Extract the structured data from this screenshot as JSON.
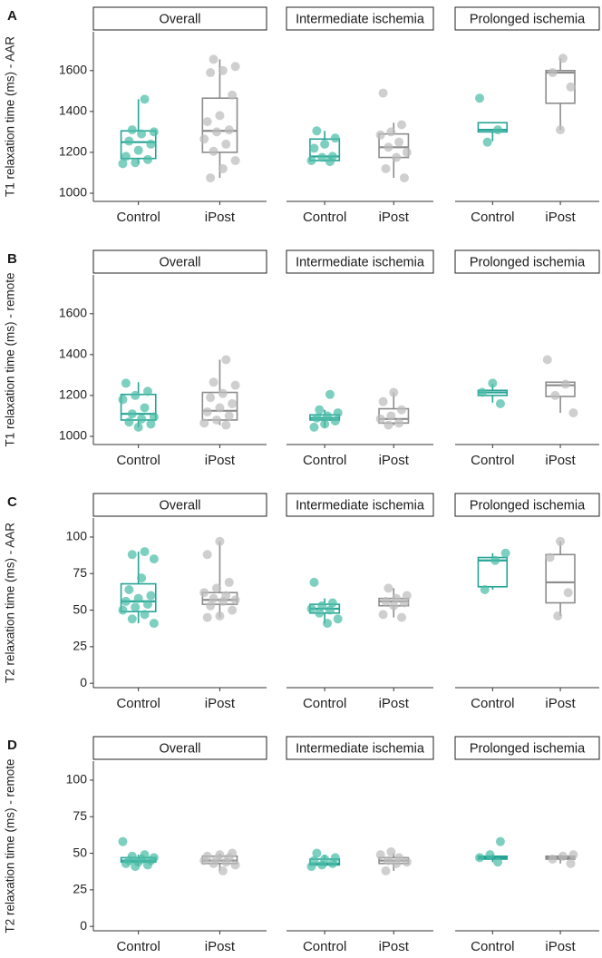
{
  "colors": {
    "control": "#26a396",
    "ipost": "#8c8c8c",
    "control_point": "#4bbca6",
    "ipost_point": "#bdbdbd",
    "axis": "#333333"
  },
  "chart_data": [
    {
      "type": "box",
      "panel_letter": "A",
      "ylabel": "T1 relaxation time (ms) - AAR",
      "ylim": [
        960,
        1790
      ],
      "yticks": [
        1000,
        1200,
        1400,
        1600
      ],
      "facets": [
        {
          "title": "Overall",
          "categories": [
            "Control",
            "iPost"
          ],
          "boxes": [
            {
              "group": "Control",
              "q1": 1170,
              "median": 1250,
              "q3": 1305,
              "whisker_low": 1145,
              "whisker_high": 1460,
              "points": [
                1145,
                1150,
                1165,
                1180,
                1210,
                1240,
                1255,
                1290,
                1300,
                1310,
                1460
              ]
            },
            {
              "group": "iPost",
              "q1": 1200,
              "median": 1305,
              "q3": 1465,
              "whisker_low": 1075,
              "whisker_high": 1655,
              "points": [
                1075,
                1120,
                1160,
                1205,
                1240,
                1265,
                1300,
                1310,
                1350,
                1380,
                1480,
                1590,
                1600,
                1620,
                1655
              ]
            }
          ]
        },
        {
          "title": "Intermediate ischemia",
          "categories": [
            "Control",
            "iPost"
          ],
          "boxes": [
            {
              "group": "Control",
              "q1": 1160,
              "median": 1180,
              "q3": 1265,
              "whisker_low": 1155,
              "whisker_high": 1305,
              "points": [
                1155,
                1160,
                1175,
                1180,
                1220,
                1240,
                1270,
                1305
              ]
            },
            {
              "group": "iPost",
              "q1": 1175,
              "median": 1225,
              "q3": 1290,
              "whisker_low": 1075,
              "whisker_high": 1345,
              "points": [
                1075,
                1120,
                1175,
                1200,
                1225,
                1250,
                1285,
                1300,
                1335,
                1490
              ]
            }
          ]
        },
        {
          "title": "Prolonged ischemia",
          "categories": [
            "Control",
            "iPost"
          ],
          "boxes": [
            {
              "group": "Control",
              "q1": 1300,
              "median": 1310,
              "q3": 1345,
              "whisker_low": 1255,
              "whisker_high": 1345,
              "points": [
                1250,
                1310,
                1465
              ]
            },
            {
              "group": "iPost",
              "q1": 1440,
              "median": 1590,
              "q3": 1600,
              "whisker_low": 1310,
              "whisker_high": 1660,
              "points": [
                1310,
                1520,
                1590,
                1660
              ]
            }
          ]
        }
      ]
    },
    {
      "type": "box",
      "panel_letter": "B",
      "ylabel": "T1 relaxation time (ms) - remote",
      "ylim": [
        960,
        1790
      ],
      "yticks": [
        1000,
        1200,
        1400,
        1600
      ],
      "facets": [
        {
          "title": "Overall",
          "categories": [
            "Control",
            "iPost"
          ],
          "boxes": [
            {
              "group": "Control",
              "q1": 1080,
              "median": 1110,
              "q3": 1205,
              "whisker_low": 1045,
              "whisker_high": 1265,
              "points": [
                1045,
                1060,
                1070,
                1085,
                1095,
                1110,
                1140,
                1180,
                1200,
                1220,
                1260
              ]
            },
            {
              "group": "iPost",
              "q1": 1080,
              "median": 1125,
              "q3": 1215,
              "whisker_low": 1055,
              "whisker_high": 1375,
              "points": [
                1055,
                1065,
                1080,
                1100,
                1120,
                1140,
                1160,
                1190,
                1210,
                1250,
                1265,
                1375
              ]
            }
          ]
        },
        {
          "title": "Intermediate ischemia",
          "categories": [
            "Control",
            "iPost"
          ],
          "boxes": [
            {
              "group": "Control",
              "q1": 1080,
              "median": 1090,
              "q3": 1105,
              "whisker_low": 1045,
              "whisker_high": 1130,
              "points": [
                1045,
                1060,
                1075,
                1090,
                1100,
                1115,
                1130,
                1205
              ]
            },
            {
              "group": "iPost",
              "q1": 1065,
              "median": 1085,
              "q3": 1135,
              "whisker_low": 1055,
              "whisker_high": 1215,
              "points": [
                1055,
                1065,
                1085,
                1100,
                1130,
                1170,
                1215
              ]
            }
          ]
        },
        {
          "title": "Prolonged ischemia",
          "categories": [
            "Control",
            "iPost"
          ],
          "boxes": [
            {
              "group": "Control",
              "q1": 1200,
              "median": 1215,
              "q3": 1225,
              "whisker_low": 1165,
              "whisker_high": 1255,
              "points": [
                1160,
                1215,
                1260
              ]
            },
            {
              "group": "iPost",
              "q1": 1195,
              "median": 1250,
              "q3": 1265,
              "whisker_low": 1115,
              "whisker_high": 1265,
              "points": [
                1115,
                1200,
                1255,
                1375
              ]
            }
          ]
        }
      ]
    },
    {
      "type": "box",
      "panel_letter": "C",
      "ylabel": "T2 relaxation time (ms) - AAR",
      "ylim": [
        -3,
        113
      ],
      "yticks": [
        0,
        25,
        50,
        75,
        100
      ],
      "facets": [
        {
          "title": "Overall",
          "categories": [
            "Control",
            "iPost"
          ],
          "boxes": [
            {
              "group": "Control",
              "q1": 49,
              "median": 56,
              "q3": 68,
              "whisker_low": 41,
              "whisker_high": 90,
              "points": [
                41,
                44,
                47,
                50,
                52,
                54,
                56,
                58,
                60,
                64,
                72,
                85,
                88,
                90
              ]
            },
            {
              "group": "iPost",
              "q1": 54,
              "median": 57,
              "q3": 62,
              "whisker_low": 45,
              "whisker_high": 97,
              "points": [
                45,
                46,
                50,
                53,
                56,
                57,
                58,
                60,
                62,
                65,
                69,
                88,
                97
              ]
            }
          ]
        },
        {
          "title": "Intermediate ischemia",
          "categories": [
            "Control",
            "iPost"
          ],
          "boxes": [
            {
              "group": "Control",
              "q1": 48,
              "median": 51,
              "q3": 54,
              "whisker_low": 41,
              "whisker_high": 58,
              "points": [
                41,
                44,
                48,
                50,
                51,
                53,
                55,
                69
              ]
            },
            {
              "group": "iPost",
              "q1": 53,
              "median": 56,
              "q3": 58,
              "whisker_low": 45,
              "whisker_high": 65,
              "points": [
                45,
                47,
                53,
                55,
                56,
                58,
                60,
                65
              ]
            }
          ]
        },
        {
          "title": "Prolonged ischemia",
          "categories": [
            "Control",
            "iPost"
          ],
          "boxes": [
            {
              "group": "Control",
              "q1": 66,
              "median": 84,
              "q3": 86,
              "whisker_low": 64,
              "whisker_high": 89,
              "points": [
                64,
                84,
                89
              ]
            },
            {
              "group": "iPost",
              "q1": 55,
              "median": 69,
              "q3": 88,
              "whisker_low": 46,
              "whisker_high": 97,
              "points": [
                46,
                62,
                86,
                97
              ]
            }
          ]
        }
      ]
    },
    {
      "type": "box",
      "panel_letter": "D",
      "ylabel": "T2 relaxation time (ms) - remote",
      "ylim": [
        -3,
        113
      ],
      "yticks": [
        0,
        25,
        50,
        75,
        100
      ],
      "facets": [
        {
          "title": "Overall",
          "categories": [
            "Control",
            "iPost"
          ],
          "boxes": [
            {
              "group": "Control",
              "q1": 44,
              "median": 45,
              "q3": 47,
              "whisker_low": 41,
              "whisker_high": 49,
              "points": [
                41,
                42,
                43,
                44,
                45,
                45,
                46,
                47,
                48,
                49,
                58
              ]
            },
            {
              "group": "iPost",
              "q1": 43,
              "median": 45,
              "q3": 48,
              "whisker_low": 38,
              "whisker_high": 50,
              "points": [
                38,
                42,
                43,
                44,
                45,
                46,
                47,
                48,
                49,
                50
              ]
            }
          ]
        },
        {
          "title": "Intermediate ischemia",
          "categories": [
            "Control",
            "iPost"
          ],
          "boxes": [
            {
              "group": "Control",
              "q1": 42,
              "median": 43,
              "q3": 46,
              "whisker_low": 41,
              "whisker_high": 49,
              "points": [
                41,
                42,
                43,
                45,
                46,
                47,
                50
              ]
            },
            {
              "group": "iPost",
              "q1": 43,
              "median": 45,
              "q3": 47,
              "whisker_low": 38,
              "whisker_high": 50,
              "points": [
                38,
                43,
                44,
                45,
                47,
                49,
                51
              ]
            }
          ]
        },
        {
          "title": "Prolonged ischemia",
          "categories": [
            "Control",
            "iPost"
          ],
          "boxes": [
            {
              "group": "Control",
              "q1": 46,
              "median": 47,
              "q3": 48,
              "whisker_low": 44,
              "whisker_high": 49,
              "points": [
                44,
                47,
                49,
                58
              ]
            },
            {
              "group": "iPost",
              "q1": 46,
              "median": 47,
              "q3": 48,
              "whisker_low": 43,
              "whisker_high": 49,
              "points": [
                43,
                46,
                48,
                49
              ]
            }
          ]
        }
      ]
    }
  ]
}
